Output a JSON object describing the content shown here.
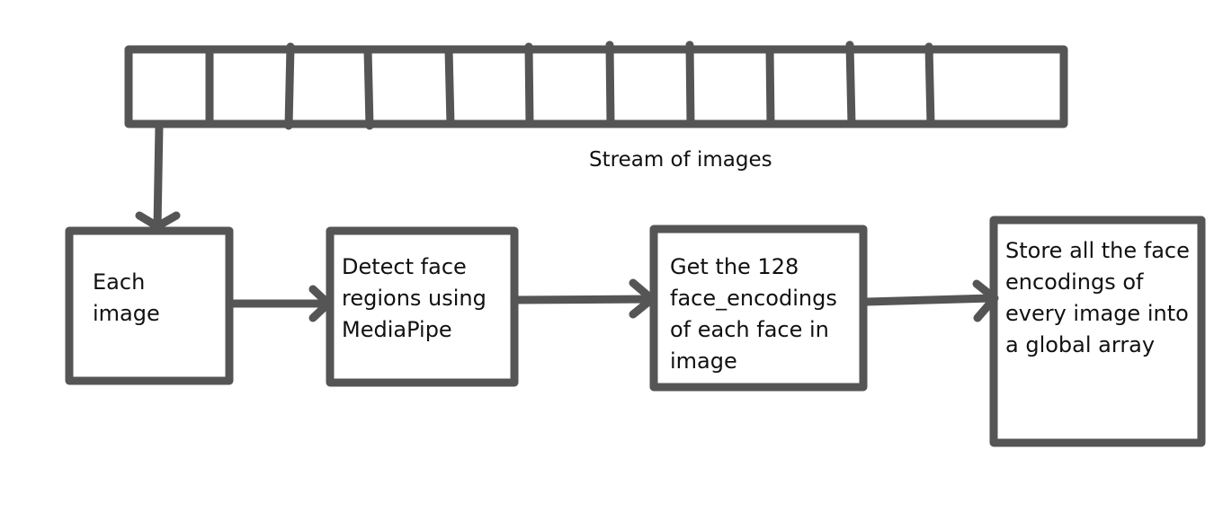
{
  "diagram": {
    "stroke_color": "#555555",
    "stream": {
      "label": "Stream of images",
      "frame_count": 11
    },
    "nodes": [
      {
        "id": "each-image",
        "lines": [
          "Each",
          "image"
        ]
      },
      {
        "id": "detect-faces",
        "lines": [
          "Detect face",
          "regions using",
          "MediaPipe"
        ]
      },
      {
        "id": "get-encodings",
        "lines": [
          "Get the 128",
          "face_encodings",
          "of each face in",
          "image"
        ]
      },
      {
        "id": "store-encodings",
        "lines": [
          "Store all the face",
          "encodings of",
          "every image into",
          "a global array"
        ]
      }
    ]
  }
}
